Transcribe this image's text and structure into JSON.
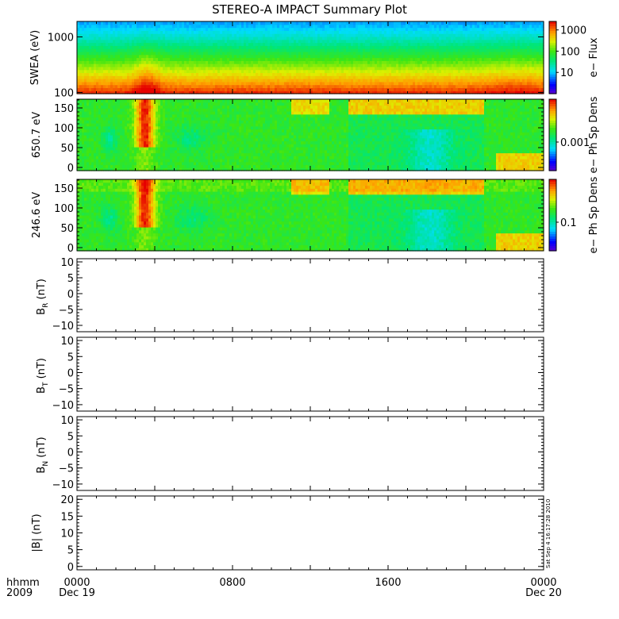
{
  "title": "STEREO-A IMPACT Summary Plot",
  "footer": {
    "time_label": "hhmm",
    "year_label": "2009",
    "timestamp": "Sat Sep  4 16:17:28 2010"
  },
  "chart_data": [
    {
      "type": "heatmap",
      "panel": "swea",
      "ylabel": "SWEA (eV)",
      "yscale": "log",
      "ylim": [
        95,
        1900
      ],
      "yticks": [
        {
          "value": 100,
          "label": "100"
        },
        {
          "value": 1000,
          "label": "1000"
        }
      ],
      "colorbar": {
        "label": "e− Flux",
        "scale": "log",
        "ticks": [
          "10",
          "100",
          "1000"
        ]
      },
      "xlim": [
        0,
        24
      ]
    },
    {
      "type": "heatmap",
      "panel": "pad650",
      "ylabel": "650.7 eV",
      "ylim": [
        -8,
        172
      ],
      "yticks": [
        {
          "value": 0,
          "label": "0"
        },
        {
          "value": 50,
          "label": "50"
        },
        {
          "value": 100,
          "label": "100"
        },
        {
          "value": 150,
          "label": "150"
        }
      ],
      "colorbar": {
        "label": "e− Ph Sp Dens",
        "scale": "log",
        "ticks": [
          "0.001"
        ]
      },
      "xlim": [
        0,
        24
      ]
    },
    {
      "type": "heatmap",
      "panel": "pad246",
      "ylabel": "246.6 eV",
      "ylim": [
        -8,
        172
      ],
      "yticks": [
        {
          "value": 0,
          "label": "0"
        },
        {
          "value": 50,
          "label": "50"
        },
        {
          "value": 100,
          "label": "100"
        },
        {
          "value": 150,
          "label": "150"
        }
      ],
      "colorbar": {
        "label": "e− Ph Sp Dens",
        "scale": "log",
        "ticks": [
          "0.1"
        ]
      },
      "xlim": [
        0,
        24
      ]
    },
    {
      "type": "line",
      "panel": "br",
      "ylabel": "B",
      "ylabel_sub": "R",
      "ylabel_unit": " (nT)",
      "ylim": [
        -12,
        11
      ],
      "yticks": [
        {
          "value": -10,
          "label": "−10"
        },
        {
          "value": -5,
          "label": "−5"
        },
        {
          "value": 0,
          "label": "0"
        },
        {
          "value": 5,
          "label": "5"
        },
        {
          "value": 10,
          "label": "10"
        }
      ],
      "series": [],
      "xlim": [
        0,
        24
      ]
    },
    {
      "type": "line",
      "panel": "bt",
      "ylabel": "B",
      "ylabel_sub": "T",
      "ylabel_unit": " (nT)",
      "ylim": [
        -12,
        11
      ],
      "yticks": [
        {
          "value": -10,
          "label": "−10"
        },
        {
          "value": -5,
          "label": "−5"
        },
        {
          "value": 0,
          "label": "0"
        },
        {
          "value": 5,
          "label": "5"
        },
        {
          "value": 10,
          "label": "10"
        }
      ],
      "series": [],
      "xlim": [
        0,
        24
      ]
    },
    {
      "type": "line",
      "panel": "bn",
      "ylabel": "B",
      "ylabel_sub": "N",
      "ylabel_unit": " (nT)",
      "ylim": [
        -12,
        11
      ],
      "yticks": [
        {
          "value": -10,
          "label": "−10"
        },
        {
          "value": -5,
          "label": "−5"
        },
        {
          "value": 0,
          "label": "0"
        },
        {
          "value": 5,
          "label": "5"
        },
        {
          "value": 10,
          "label": "10"
        }
      ],
      "series": [],
      "xlim": [
        0,
        24
      ]
    },
    {
      "type": "line",
      "panel": "bmag",
      "ylabel": "|B| (nT)",
      "ylim": [
        -1,
        21
      ],
      "yticks": [
        {
          "value": 0,
          "label": "0"
        },
        {
          "value": 5,
          "label": "5"
        },
        {
          "value": 10,
          "label": "10"
        },
        {
          "value": 15,
          "label": "15"
        },
        {
          "value": 20,
          "label": "20"
        }
      ],
      "series": [],
      "xlim": [
        0,
        24
      ],
      "xticks": [
        {
          "value": 0,
          "label": "0000",
          "date": "Dec 19"
        },
        {
          "value": 8,
          "label": "0800",
          "date": ""
        },
        {
          "value": 16,
          "label": "1600",
          "date": ""
        },
        {
          "value": 24,
          "label": "0000",
          "date": "Dec 20"
        }
      ]
    }
  ]
}
